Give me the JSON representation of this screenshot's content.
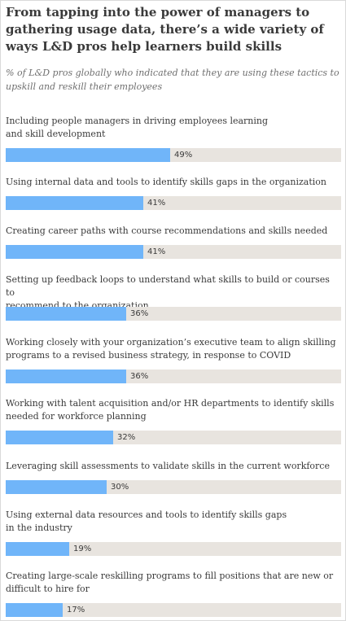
{
  "title": "From tapping into the power of managers to gathering usage data, there’s a wide variety of ways L&D pros help learners build skills",
  "subtitle": "% of L&D pros globally who indicated that they are using these tactics to upskill and reskill their employees",
  "colors": {
    "bar": "#70b5f9",
    "track": "#e8e4df"
  },
  "chart_data": {
    "type": "bar",
    "orientation": "horizontal",
    "title": "From tapping into the power of managers to gathering usage data, there’s a wide variety of ways L&D pros help learners build skills",
    "subtitle": "% of L&D pros globally who indicated that they are using these tactics to upskill and reskill their employees",
    "xlim": [
      0,
      100
    ],
    "grid": false,
    "categories": [
      "Including people managers in driving employees learning\nand skill development",
      "Using internal data and tools to identify skills gaps in the organization",
      "Creating career paths with course recommendations and skills needed",
      "Setting up feedback loops to understand what skills to build or courses to\nrecommend to the organization",
      "Working closely with your organization’s executive team to align skilling\nprograms to a revised business strategy, in response to COVID",
      "Working with talent acquisition and/or HR departments to identify skills\nneeded for workforce planning",
      "Leveraging skill assessments to validate skills in the current workforce",
      "Using external data resources and tools to identify skills gaps\nin the industry",
      "Creating large-scale reskilling programs to fill positions that are new or\ndifficult to hire for"
    ],
    "values": [
      49,
      41,
      41,
      36,
      36,
      32,
      30,
      19,
      17
    ],
    "value_labels": [
      "49%",
      "41%",
      "41%",
      "36%",
      "36%",
      "32%",
      "30%",
      "19%",
      "17%"
    ]
  }
}
